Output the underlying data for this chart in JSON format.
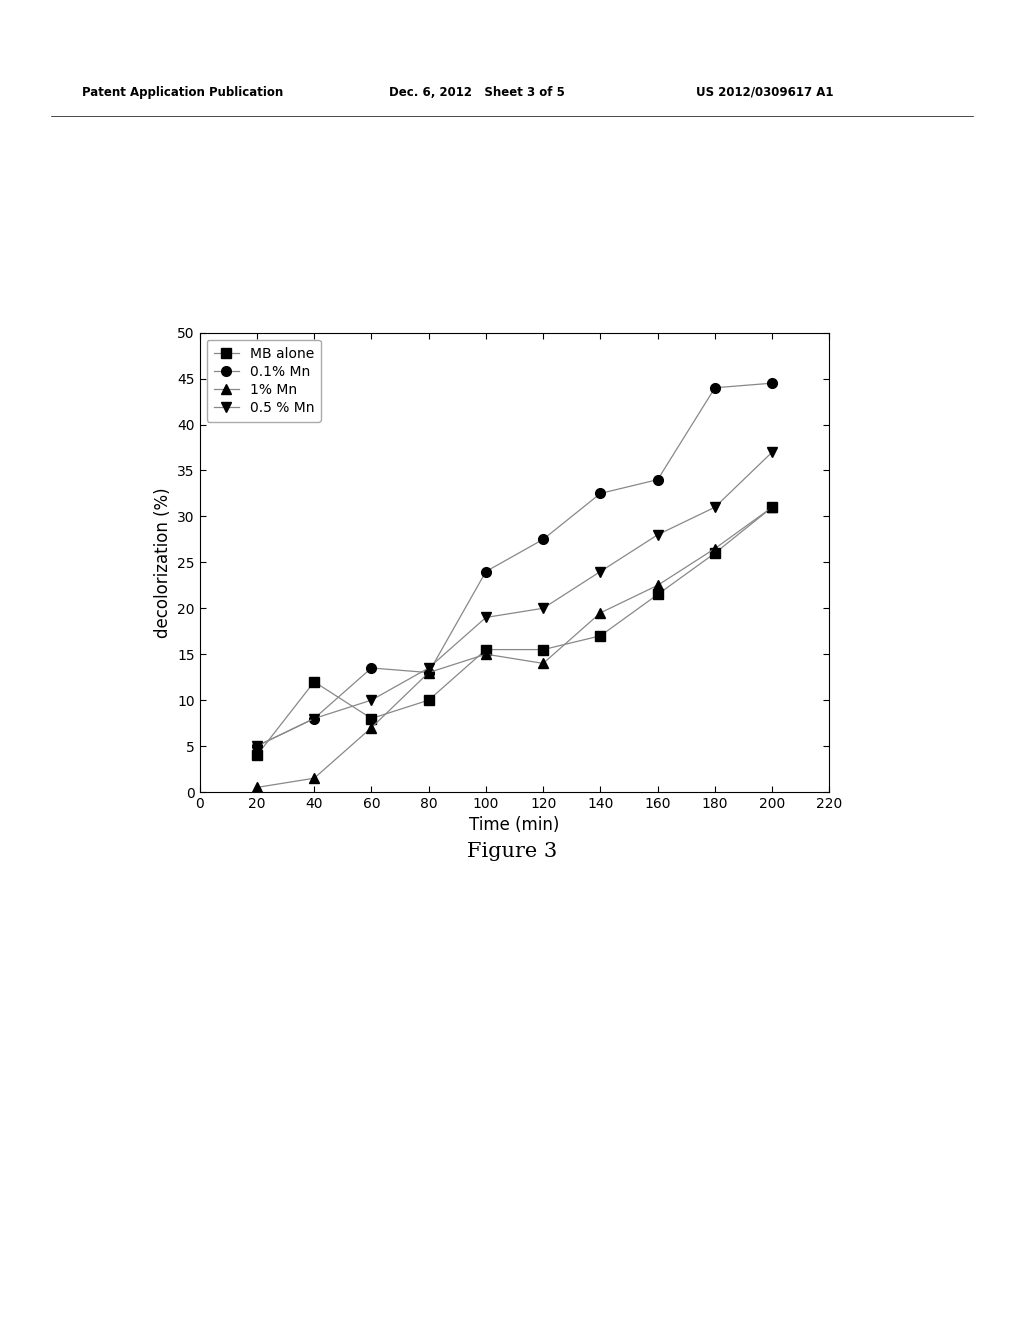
{
  "title_text": "Figure 3",
  "patent_header_left": "Patent Application Publication",
  "patent_header_mid": "Dec. 6, 2012   Sheet 3 of 5",
  "patent_header_right": "US 2012/0309617 A1",
  "xlabel": "Time (min)",
  "ylabel": "decolorization (%)",
  "xlim": [
    0,
    220
  ],
  "ylim": [
    0,
    50
  ],
  "xticks": [
    0,
    20,
    40,
    60,
    80,
    100,
    120,
    140,
    160,
    180,
    200,
    220
  ],
  "yticks": [
    0,
    5,
    10,
    15,
    20,
    25,
    30,
    35,
    40,
    45,
    50
  ],
  "series": [
    {
      "label": "MB alone",
      "marker": "s",
      "x": [
        20,
        40,
        60,
        80,
        100,
        120,
        140,
        160,
        180,
        200
      ],
      "y": [
        4,
        12,
        8,
        10,
        15.5,
        15.5,
        17,
        21.5,
        26,
        31
      ]
    },
    {
      "label": "0.1% Mn",
      "marker": "o",
      "x": [
        20,
        40,
        60,
        80,
        100,
        120,
        140,
        160,
        180,
        200
      ],
      "y": [
        5,
        8,
        13.5,
        13,
        24,
        27.5,
        32.5,
        34,
        44,
        44.5
      ]
    },
    {
      "label": "1% Mn",
      "marker": "^",
      "x": [
        20,
        40,
        60,
        80,
        100,
        120,
        140,
        160,
        180,
        200
      ],
      "y": [
        0.5,
        1.5,
        7,
        13,
        15,
        14,
        19.5,
        22.5,
        26.5,
        31
      ]
    },
    {
      "label": "0.5 % Mn",
      "marker": "v",
      "x": [
        20,
        40,
        60,
        80,
        100,
        120,
        140,
        160,
        180,
        200
      ],
      "y": [
        5,
        8,
        10,
        13.5,
        19,
        20,
        24,
        28,
        31,
        37
      ]
    }
  ],
  "line_color": "#888888",
  "marker_color": "#000000",
  "marker_size": 7,
  "line_width": 0.9,
  "background_color": "#ffffff",
  "legend_fontsize": 10,
  "axis_fontsize": 12,
  "tick_fontsize": 10,
  "title_fontsize": 15,
  "patent_fontsize": 8.5
}
